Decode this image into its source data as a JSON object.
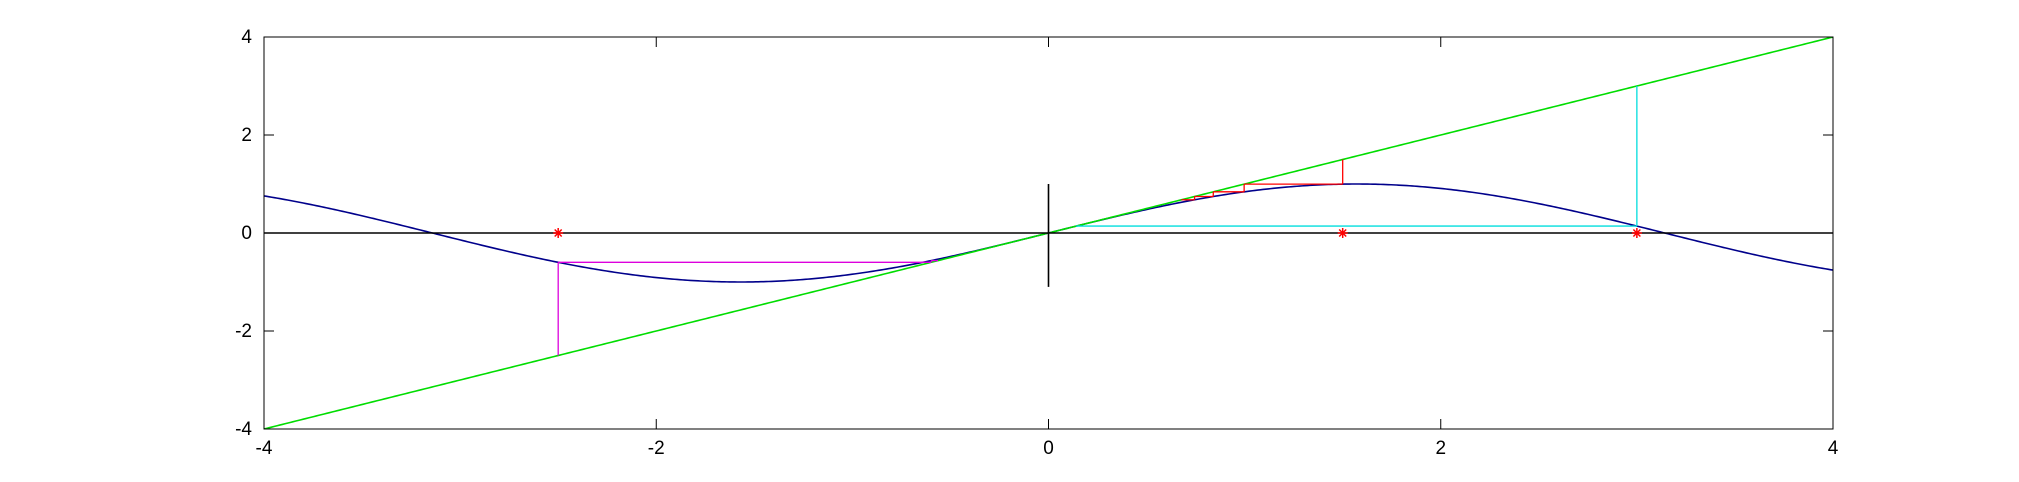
{
  "chart_data": {
    "type": "line",
    "title": "",
    "xlabel": "",
    "ylabel": "",
    "xlim": [
      -4,
      4
    ],
    "ylim": [
      -4,
      4
    ],
    "grid": false,
    "x_ticks": [
      -4,
      -2,
      0,
      2,
      4
    ],
    "y_ticks": [
      -4,
      -2,
      0,
      2,
      4
    ],
    "x_tick_labels": [
      "-4",
      "-2",
      "0",
      "2",
      "4"
    ],
    "y_tick_labels": [
      "-4",
      "-2",
      "0",
      "2",
      "4"
    ],
    "series": [
      {
        "kind": "function",
        "function": "sin",
        "color": "#00008b",
        "domain": [
          -4,
          4
        ]
      },
      {
        "kind": "function",
        "function": "identity",
        "color": "#00dd00",
        "domain": [
          -4,
          4
        ]
      },
      {
        "kind": "segments",
        "color": "#000000",
        "x": [
          [
            -4,
            4
          ],
          [
            0,
            0
          ]
        ],
        "y": [
          [
            0,
            0
          ],
          [
            -1.1,
            1.0
          ]
        ]
      },
      {
        "kind": "iteration",
        "color": "#dd00dd",
        "x0": -2.5,
        "steps": 2
      },
      {
        "kind": "iteration",
        "color": "#00dddd",
        "x0": 3.0,
        "steps": 2
      },
      {
        "kind": "iteration",
        "color": "#ff0000",
        "x0": 1.5,
        "steps": 4
      },
      {
        "kind": "markers",
        "marker": "asterisk",
        "color": "#ff0000",
        "x": [
          -2.5,
          1.5,
          3.0
        ],
        "y": [
          0,
          0,
          0
        ]
      }
    ]
  }
}
